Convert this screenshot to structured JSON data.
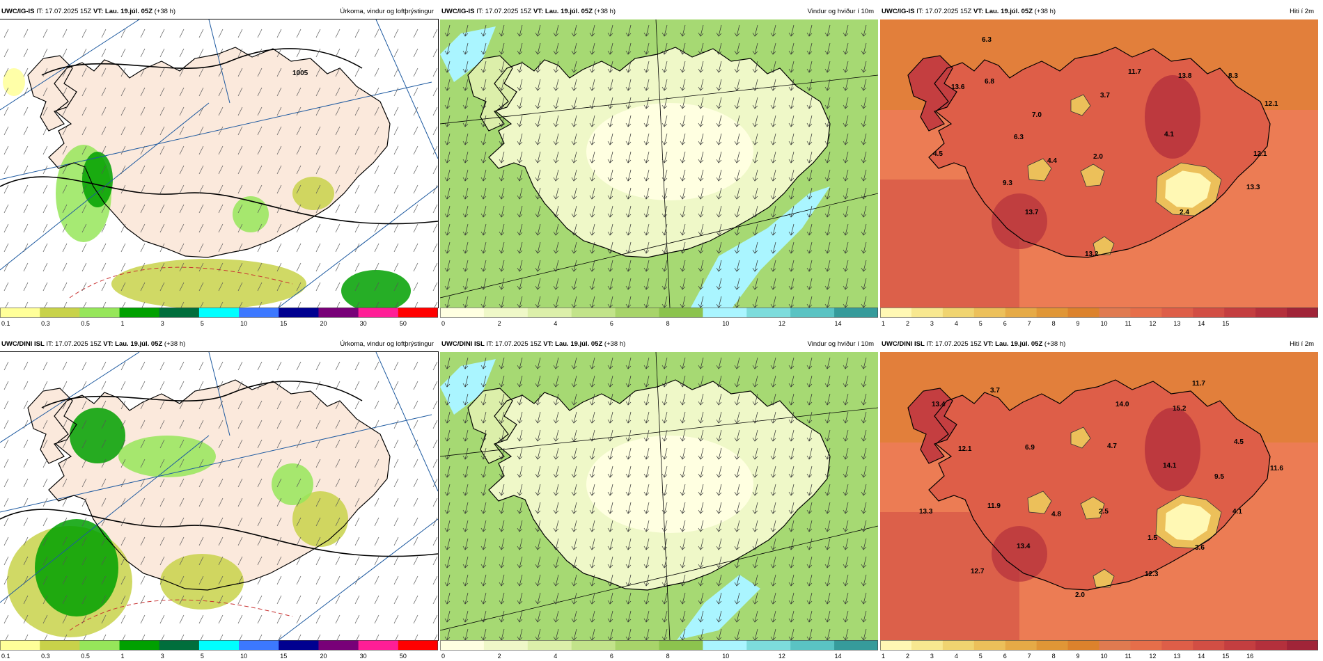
{
  "panels": [
    {
      "model": "UWC/IG-IS",
      "it": "IT: 17.07.2025 15Z",
      "vt_label": "VT:",
      "vt": "Lau. 19.júl. 05Z",
      "lead": "(+38 h)",
      "title": "Úrkoma, vindur og loftþrýstingur",
      "legend": [
        "0.1",
        "0.3",
        "0.5",
        "1",
        "3",
        "5",
        "10",
        "15",
        "20",
        "30",
        "50"
      ],
      "labels": [
        "1005"
      ]
    },
    {
      "model": "UWC/IG-IS",
      "it": "IT: 17.07.2025 15Z",
      "vt_label": "VT:",
      "vt": "Lau. 19.júl. 05Z",
      "lead": "(+38 h)",
      "title": "Vindur og hviður í 10m",
      "legend": [
        "0",
        "2",
        "4",
        "6",
        "8",
        "10",
        "12",
        "14"
      ],
      "labels": []
    },
    {
      "model": "UWC/IG-IS",
      "it": "IT: 17.07.2025 15Z",
      "vt_label": "VT:",
      "vt": "Lau. 19.júl. 05Z",
      "lead": "(+38 h)",
      "title": "Hiti í 2m",
      "legend": [
        "1",
        "2",
        "3",
        "4",
        "5",
        "6",
        "7",
        "8",
        "9",
        "10",
        "11",
        "12",
        "13",
        "14",
        "15"
      ],
      "labels": [
        "6.3",
        "11.7",
        "13.8",
        "8.3",
        "13.6",
        "6.8",
        "3.7",
        "12.1",
        "7.0",
        "6.3",
        "4.1",
        "4.5",
        "4.4",
        "2.0",
        "12.1",
        "9.3",
        "13.3",
        "13.7",
        "2.4",
        "13.2"
      ]
    },
    {
      "model": "UWC/DINI ISL",
      "it": "IT: 17.07.2025 15Z",
      "vt_label": "VT:",
      "vt": "Lau. 19.júl. 05Z",
      "lead": "(+38 h)",
      "title": "Úrkoma, vindur og loftþrýstingur",
      "legend": [
        "0.1",
        "0.3",
        "0.5",
        "1",
        "3",
        "5",
        "10",
        "15",
        "20",
        "30",
        "50"
      ],
      "labels": []
    },
    {
      "model": "UWC/DINI ISL",
      "it": "IT: 17.07.2025 15Z",
      "vt_label": "VT:",
      "vt": "Lau. 19.júl. 05Z",
      "lead": "(+38 h)",
      "title": "Vindur og hviður í 10m",
      "legend": [
        "0",
        "2",
        "4",
        "6",
        "8",
        "10",
        "12",
        "14"
      ],
      "labels": []
    },
    {
      "model": "UWC/DINI ISL",
      "it": "IT: 17.07.2025 15Z",
      "vt_label": "VT:",
      "vt": "Lau. 19.júl. 05Z",
      "lead": "(+38 h)",
      "title": "Hiti í 2m",
      "legend": [
        "1",
        "2",
        "3",
        "4",
        "5",
        "6",
        "7",
        "8",
        "9",
        "10",
        "11",
        "12",
        "13",
        "14",
        "15",
        "16"
      ],
      "labels": [
        "3.7",
        "11.7",
        "13.4",
        "14.0",
        "15.2",
        "12.1",
        "6.9",
        "4.7",
        "4.5",
        "14.1",
        "9.5",
        "11.6",
        "13.3",
        "11.9",
        "4.8",
        "2.5",
        "4.1",
        "1.5",
        "13.4",
        "3.6",
        "12.7",
        "12.3",
        "2.0"
      ]
    }
  ],
  "colors": {
    "precip": [
      "#ffff99",
      "#c8d24a",
      "#96e65a",
      "#00a000",
      "#006e3c",
      "#00ffff",
      "#3c78ff",
      "#000090",
      "#780078",
      "#ff1e96",
      "#ff0000"
    ],
    "wind": [
      "#ffffe1",
      "#eff8c8",
      "#dcefaa",
      "#c2e38a",
      "#a8d46a",
      "#8cc34e",
      "#aaf5ff",
      "#7ddcdc",
      "#5ac3c3",
      "#369b9b"
    ],
    "temp": [
      "#fff8b4",
      "#f8e890",
      "#f0d470",
      "#ecc05a",
      "#e6aa46",
      "#e09636",
      "#dc822c",
      "#e07a50",
      "#e66e4a",
      "#de5e48",
      "#d24e44",
      "#c43e40",
      "#b4303c",
      "#a02438"
    ],
    "land_precip": "#fbe9dc",
    "sea_wind": "#a6dd7a",
    "sea_temp": "#ec7c54",
    "contour": "#000000",
    "graticule": "#1e5aa0",
    "isotherm": "#c83232"
  }
}
